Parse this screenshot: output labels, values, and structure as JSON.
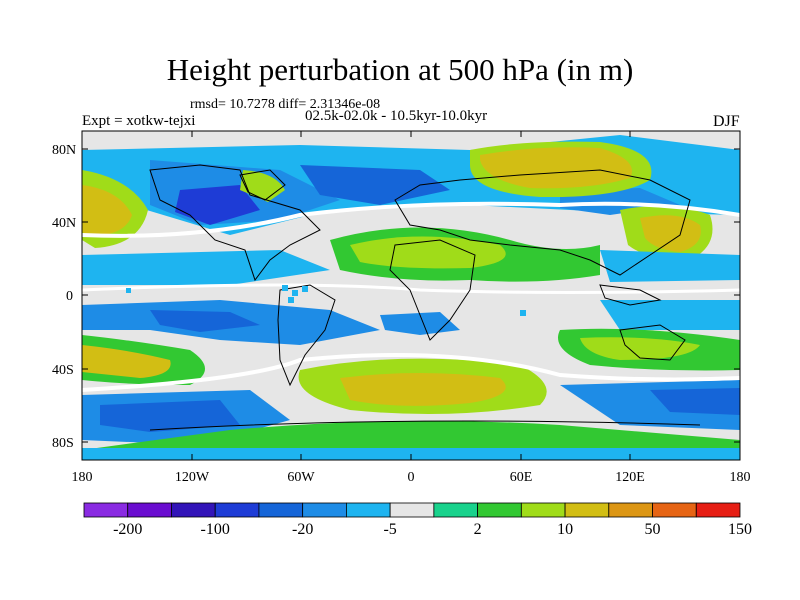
{
  "title": "Height perturbation at 500 hPa (in m)",
  "stats": "rmsd= 10.7278 diff= 2.31346e-08",
  "period": "02.5k-02.0k - 10.5kyr-10.0kyr",
  "experiment": "Expt = xotkw-tejxi",
  "season": "DJF",
  "lat_labels": [
    "80N",
    "40N",
    "0",
    "40S",
    "80S"
  ],
  "lon_labels": [
    "180",
    "120W",
    "60W",
    "0",
    "60E",
    "120E",
    "180"
  ],
  "colorbar": {
    "colors": [
      "#8a2be2",
      "#6a0dd0",
      "#3214b8",
      "#1e3cd6",
      "#1565d8",
      "#1e8ce6",
      "#1eb4f0",
      "#e6e6e6",
      "#19d28c",
      "#32c832",
      "#a0dc19",
      "#d2be14",
      "#dc9614",
      "#e66414",
      "#e61e14"
    ],
    "tick_labels": [
      "-200",
      "-100",
      "-20",
      "-5",
      "2",
      "10",
      "50",
      "150"
    ]
  }
}
